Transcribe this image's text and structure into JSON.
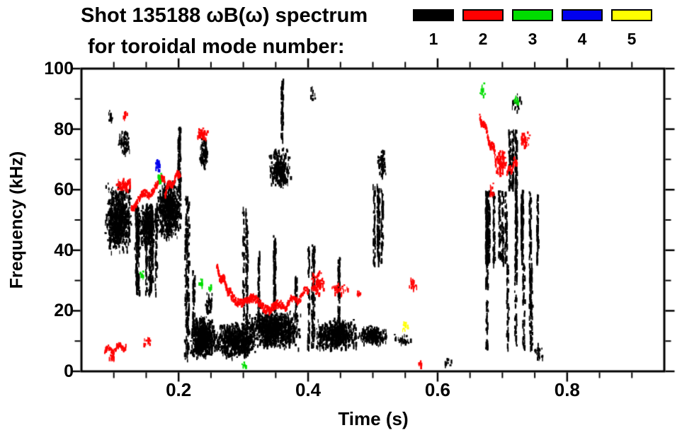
{
  "header": {
    "title_line1": "Shot 135188 ωB(ω) spectrum",
    "title_line2": "for toroidal mode number:"
  },
  "legend": {
    "position": "top-right",
    "modes": [
      {
        "label": "1",
        "color": "#000000"
      },
      {
        "label": "2",
        "color": "#ff0000"
      },
      {
        "label": "3",
        "color": "#00dd00"
      },
      {
        "label": "4",
        "color": "#0000ee"
      },
      {
        "label": "5",
        "color": "#ffff00"
      }
    ]
  },
  "chart_data": {
    "type": "scatter",
    "title": "Shot 135188 ωB(ω) spectrum for toroidal mode number 1-5",
    "xlabel": "Time (s)",
    "ylabel": "Frequency (kHz)",
    "xlim": [
      0.05,
      0.95
    ],
    "ylim": [
      0,
      100
    ],
    "xticks": [
      0.2,
      0.4,
      0.6,
      0.8
    ],
    "xtick_labels": [
      "0.2",
      "0.4",
      "0.6",
      "0.8"
    ],
    "x_minor_step": 0.05,
    "yticks": [
      0,
      20,
      40,
      60,
      80,
      100
    ],
    "ytick_labels": [
      "0",
      "20",
      "40",
      "60",
      "80",
      "100"
    ],
    "y_minor_step": 10,
    "grid": false,
    "series": [
      {
        "name": "mode 1",
        "color": "#000000",
        "clusters": [
          {
            "s": "blob",
            "t": [
              0.085,
              0.127
            ],
            "f": [
              38,
              62
            ],
            "n": 700
          },
          {
            "s": "blob",
            "t": [
              0.088,
              0.098
            ],
            "f": [
              82,
              86
            ],
            "n": 12
          },
          {
            "s": "blob",
            "t": [
              0.105,
              0.126
            ],
            "f": [
              71,
              80
            ],
            "n": 70
          },
          {
            "s": "streak",
            "t": [
              0.125,
              0.168
            ],
            "f": [
              26,
              56
            ],
            "n": 380
          },
          {
            "s": "blob",
            "t": [
              0.13,
              0.168
            ],
            "f": [
              40,
              56
            ],
            "n": 260
          },
          {
            "s": "blob",
            "t": [
              0.165,
              0.205
            ],
            "f": [
              43,
              63
            ],
            "n": 600
          },
          {
            "s": "streak",
            "t": [
              0.19,
              0.202
            ],
            "f": [
              58,
              81
            ],
            "n": 90
          },
          {
            "s": "streak",
            "t": [
              0.206,
              0.216
            ],
            "f": [
              4,
              58
            ],
            "n": 170
          },
          {
            "s": "blob",
            "t": [
              0.215,
              0.258
            ],
            "f": [
              4,
              18
            ],
            "n": 600
          },
          {
            "s": "streak",
            "t": [
              0.218,
              0.228
            ],
            "f": [
              14,
              34
            ],
            "n": 50
          },
          {
            "s": "blob",
            "t": [
              0.231,
              0.245
            ],
            "f": [
              66,
              77
            ],
            "n": 90
          },
          {
            "s": "blob",
            "t": [
              0.24,
              0.252
            ],
            "f": [
              18,
              26
            ],
            "n": 40
          },
          {
            "s": "blob",
            "t": [
              0.255,
              0.318
            ],
            "f": [
              4,
              16
            ],
            "n": 600
          },
          {
            "s": "streak",
            "t": [
              0.296,
              0.306
            ],
            "f": [
              6,
              56
            ],
            "n": 150
          },
          {
            "s": "blob",
            "t": [
              0.305,
              0.388
            ],
            "f": [
              7,
              20
            ],
            "n": 900
          },
          {
            "s": "streak",
            "t": [
              0.318,
              0.326
            ],
            "f": [
              18,
              40
            ],
            "n": 45
          },
          {
            "s": "streak",
            "t": [
              0.344,
              0.356
            ],
            "f": [
              20,
              46
            ],
            "n": 110
          },
          {
            "s": "blob",
            "t": [
              0.338,
              0.373
            ],
            "f": [
              60,
              74
            ],
            "n": 260
          },
          {
            "s": "streak",
            "t": [
              0.35,
              0.366
            ],
            "f": [
              77,
              97
            ],
            "n": 50
          },
          {
            "s": "streak",
            "t": [
              0.374,
              0.384
            ],
            "f": [
              18,
              32
            ],
            "n": 40
          },
          {
            "s": "streak",
            "t": [
              0.398,
              0.414
            ],
            "f": [
              8,
              42
            ],
            "n": 140
          },
          {
            "s": "blob",
            "t": [
              0.401,
              0.41
            ],
            "f": [
              89,
              94
            ],
            "n": 10
          },
          {
            "s": "blob",
            "t": [
              0.41,
              0.478
            ],
            "f": [
              7,
              17
            ],
            "n": 550
          },
          {
            "s": "streak",
            "t": [
              0.44,
              0.452
            ],
            "f": [
              17,
              38
            ],
            "n": 60
          },
          {
            "s": "blob",
            "t": [
              0.478,
              0.522
            ],
            "f": [
              8,
              15
            ],
            "n": 220
          },
          {
            "s": "streak",
            "t": [
              0.5,
              0.516
            ],
            "f": [
              36,
              62
            ],
            "n": 170
          },
          {
            "s": "blob",
            "t": [
              0.505,
              0.52
            ],
            "f": [
              63,
              73
            ],
            "n": 60
          },
          {
            "s": "blob",
            "t": [
              0.53,
              0.56
            ],
            "f": [
              9,
              12
            ],
            "n": 25
          },
          {
            "s": "blob",
            "t": [
              0.61,
              0.622
            ],
            "f": [
              1,
              4
            ],
            "n": 10
          },
          {
            "s": "streak",
            "t": [
              0.665,
              0.755
            ],
            "f": [
              36,
              60
            ],
            "n": 650
          },
          {
            "s": "streak",
            "t": [
              0.675,
              0.745
            ],
            "f": [
              8,
              36
            ],
            "n": 280
          },
          {
            "s": "streak",
            "t": [
              0.7,
              0.724
            ],
            "f": [
              60,
              80
            ],
            "n": 130
          },
          {
            "s": "blob",
            "t": [
              0.712,
              0.732
            ],
            "f": [
              85,
              93
            ],
            "n": 25
          },
          {
            "s": "blob",
            "t": [
              0.748,
              0.762
            ],
            "f": [
              3,
              9
            ],
            "n": 25
          }
        ]
      },
      {
        "name": "mode 2",
        "color": "#ff0000",
        "clusters": [
          {
            "s": "trace",
            "t": [
              0.085,
              0.118
            ],
            "f": [
              7,
              9
            ],
            "n": 70,
            "b": 1.5
          },
          {
            "s": "blob",
            "t": [
              0.09,
              0.102
            ],
            "f": [
              3,
              6
            ],
            "n": 15
          },
          {
            "s": "blob",
            "t": [
              0.102,
              0.126
            ],
            "f": [
              59,
              64
            ],
            "n": 60
          },
          {
            "s": "blob",
            "t": [
              0.112,
              0.122
            ],
            "f": [
              83,
              86
            ],
            "n": 14
          },
          {
            "s": "trace",
            "t": [
              0.126,
              0.178
            ],
            "f": [
              55,
              64
            ],
            "n": 140,
            "b": 2
          },
          {
            "s": "trace",
            "t": [
              0.178,
              0.202
            ],
            "f": [
              60,
              66
            ],
            "n": 70,
            "b": 2
          },
          {
            "s": "blob",
            "t": [
              0.145,
              0.158
            ],
            "f": [
              8,
              11
            ],
            "n": 12
          },
          {
            "s": "blob",
            "t": [
              0.228,
              0.245
            ],
            "f": [
              76,
              80
            ],
            "n": 45
          },
          {
            "s": "trace",
            "t": [
              0.258,
              0.28
            ],
            "f": [
              34,
              26
            ],
            "n": 90,
            "b": 2
          },
          {
            "s": "trace",
            "t": [
              0.28,
              0.36
            ],
            "f": [
              25,
              21
            ],
            "n": 240,
            "b": 2.5
          },
          {
            "s": "trace",
            "t": [
              0.36,
              0.4
            ],
            "f": [
              22,
              27
            ],
            "n": 90,
            "b": 2
          },
          {
            "s": "blob",
            "t": [
              0.402,
              0.426
            ],
            "f": [
              25,
              33
            ],
            "n": 70
          },
          {
            "s": "blob",
            "t": [
              0.432,
              0.462
            ],
            "f": [
              24,
              29
            ],
            "n": 35
          },
          {
            "s": "blob",
            "t": [
              0.472,
              0.482
            ],
            "f": [
              24,
              27
            ],
            "n": 8
          },
          {
            "s": "blob",
            "t": [
              0.553,
              0.568
            ],
            "f": [
              26,
              31
            ],
            "n": 16
          },
          {
            "s": "blob",
            "t": [
              0.568,
              0.578
            ],
            "f": [
              1,
              3
            ],
            "n": 8
          },
          {
            "s": "trace",
            "t": [
              0.664,
              0.688
            ],
            "f": [
              85,
              72
            ],
            "n": 90,
            "b": 2
          },
          {
            "s": "blob",
            "t": [
              0.686,
              0.706
            ],
            "f": [
              64,
              74
            ],
            "n": 100
          },
          {
            "s": "trace",
            "t": [
              0.706,
              0.722
            ],
            "f": [
              66,
              70
            ],
            "n": 40,
            "b": 2
          },
          {
            "s": "blob",
            "t": [
              0.724,
              0.742
            ],
            "f": [
              73,
              79
            ],
            "n": 30
          },
          {
            "s": "blob",
            "t": [
              0.676,
              0.688
            ],
            "f": [
              58,
              62
            ],
            "n": 14
          }
        ]
      },
      {
        "name": "mode 3",
        "color": "#00dd00",
        "clusters": [
          {
            "s": "blob",
            "t": [
              0.167,
              0.175
            ],
            "f": [
              62,
              65
            ],
            "n": 12
          },
          {
            "s": "blob",
            "t": [
              0.138,
              0.146
            ],
            "f": [
              30,
              33
            ],
            "n": 8
          },
          {
            "s": "blob",
            "t": [
              0.23,
              0.237
            ],
            "f": [
              28,
              31
            ],
            "n": 8
          },
          {
            "s": "blob",
            "t": [
              0.245,
              0.251
            ],
            "f": [
              27,
              29
            ],
            "n": 6
          },
          {
            "s": "blob",
            "t": [
              0.296,
              0.305
            ],
            "f": [
              1,
              3
            ],
            "n": 8
          },
          {
            "s": "blob",
            "t": [
              0.663,
              0.673
            ],
            "f": [
              90,
              95
            ],
            "n": 12
          },
          {
            "s": "blob",
            "t": [
              0.716,
              0.725
            ],
            "f": [
              87,
              91
            ],
            "n": 10
          }
        ]
      },
      {
        "name": "mode 4",
        "color": "#0000ee",
        "clusters": [
          {
            "s": "blob",
            "t": [
              0.162,
              0.172
            ],
            "f": [
              66,
              70
            ],
            "n": 25
          }
        ]
      },
      {
        "name": "mode 5",
        "color": "#ffff00",
        "clusters": [
          {
            "s": "blob",
            "t": [
              0.545,
              0.553
            ],
            "f": [
              13,
              16
            ],
            "n": 12
          }
        ]
      }
    ]
  }
}
